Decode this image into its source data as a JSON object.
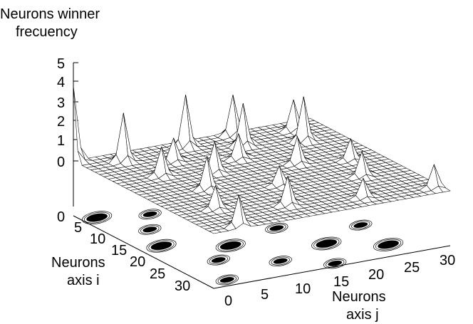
{
  "chart_data": {
    "type": "surface3d",
    "zlabel_line1": "Neurons winner",
    "zlabel_line2": "frecuency",
    "xlabel_line1": "Neurons",
    "xlabel_line2": "axis j",
    "ylabel_line1": "Neurons",
    "ylabel_line2": "axis i",
    "z_ticks": [
      "0",
      "1",
      "2",
      "3",
      "4",
      "5"
    ],
    "j_ticks": [
      "0",
      "5",
      "10",
      "15",
      "20",
      "25",
      "30"
    ],
    "i_ticks": [
      "0",
      "5",
      "10",
      "15",
      "20",
      "25",
      "30"
    ],
    "xlim": [
      0,
      32
    ],
    "ylim": [
      0,
      32
    ],
    "zlim": [
      0,
      5
    ],
    "contour_base": true,
    "peaks": [
      {
        "i": 0,
        "j": 0,
        "z": 3.9
      },
      {
        "i": 3,
        "j": 5,
        "z": 2.5
      },
      {
        "i": 2,
        "j": 14,
        "z": 2.7
      },
      {
        "i": 1,
        "j": 21,
        "z": 2.1
      },
      {
        "i": 5,
        "j": 20,
        "z": 2.2
      },
      {
        "i": 3,
        "j": 28,
        "z": 1.6
      },
      {
        "i": 7,
        "j": 27,
        "z": 2.3
      },
      {
        "i": 6,
        "j": 10,
        "z": 1.2
      },
      {
        "i": 10,
        "j": 6,
        "z": 1.5
      },
      {
        "i": 9,
        "j": 17,
        "z": 1.3
      },
      {
        "i": 12,
        "j": 12,
        "z": 1.6
      },
      {
        "i": 14,
        "j": 22,
        "z": 1.4
      },
      {
        "i": 17,
        "j": 8,
        "z": 1.7
      },
      {
        "i": 16,
        "j": 28,
        "z": 1.1
      },
      {
        "i": 20,
        "j": 16,
        "z": 1.0
      },
      {
        "i": 22,
        "j": 26,
        "z": 1.3
      },
      {
        "i": 24,
        "j": 5,
        "z": 1.2
      },
      {
        "i": 27,
        "j": 13,
        "z": 1.5
      },
      {
        "i": 29,
        "j": 22,
        "z": 1.0
      },
      {
        "i": 31,
        "j": 4,
        "z": 1.6
      },
      {
        "i": 30,
        "j": 31,
        "z": 1.2
      }
    ],
    "contour_spots": [
      {
        "i": 2,
        "j": 2,
        "size": 3
      },
      {
        "i": 4,
        "j": 8,
        "size": 2
      },
      {
        "i": 1,
        "j": 15,
        "size": 2
      },
      {
        "i": 6,
        "j": 20,
        "size": 3
      },
      {
        "i": 5,
        "j": 27,
        "size": 2
      },
      {
        "i": 9,
        "j": 5,
        "size": 2
      },
      {
        "i": 11,
        "j": 13,
        "size": 3
      },
      {
        "i": 12,
        "j": 24,
        "size": 2
      },
      {
        "i": 15,
        "j": 3,
        "size": 3
      },
      {
        "i": 16,
        "j": 18,
        "size": 2
      },
      {
        "i": 19,
        "j": 10,
        "size": 3
      },
      {
        "i": 20,
        "j": 27,
        "size": 2
      },
      {
        "i": 23,
        "j": 6,
        "size": 2
      },
      {
        "i": 24,
        "j": 20,
        "size": 3
      },
      {
        "i": 27,
        "j": 12,
        "size": 2
      },
      {
        "i": 28,
        "j": 26,
        "size": 3
      },
      {
        "i": 30,
        "j": 3,
        "size": 2
      },
      {
        "i": 31,
        "j": 17,
        "size": 2
      }
    ]
  }
}
